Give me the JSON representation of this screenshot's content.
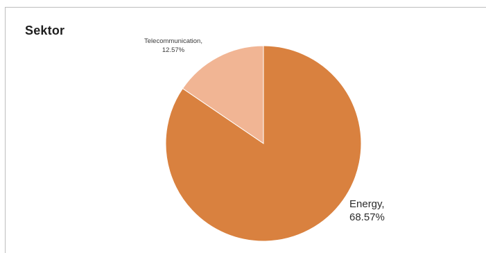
{
  "chart_data": {
    "type": "pie",
    "title": "Sektor",
    "slices": [
      {
        "name": "Energy",
        "value": 68.57,
        "label": "Energy,",
        "percent_label": "68.57%",
        "color": "#d9813f"
      },
      {
        "name": "Telecommunication",
        "value": 12.57,
        "label": "Telecommunication,",
        "percent_label": "12.57%",
        "color": "#f1b594"
      }
    ],
    "legend": "none"
  }
}
